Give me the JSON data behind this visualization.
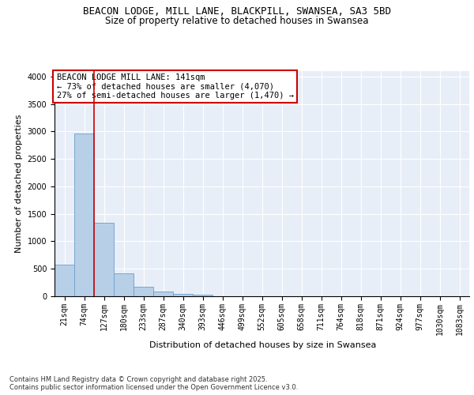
{
  "title_line1": "BEACON LODGE, MILL LANE, BLACKPILL, SWANSEA, SA3 5BD",
  "title_line2": "Size of property relative to detached houses in Swansea",
  "xlabel": "Distribution of detached houses by size in Swansea",
  "ylabel": "Number of detached properties",
  "categories": [
    "21sqm",
    "74sqm",
    "127sqm",
    "180sqm",
    "233sqm",
    "287sqm",
    "340sqm",
    "393sqm",
    "446sqm",
    "499sqm",
    "552sqm",
    "605sqm",
    "658sqm",
    "711sqm",
    "764sqm",
    "818sqm",
    "871sqm",
    "924sqm",
    "977sqm",
    "1030sqm",
    "1083sqm"
  ],
  "values": [
    580,
    2970,
    1340,
    420,
    175,
    90,
    50,
    30,
    5,
    0,
    0,
    0,
    0,
    0,
    0,
    0,
    0,
    0,
    0,
    0,
    0
  ],
  "bar_color": "#b8cfe8",
  "bar_edge_color": "#6a9fc8",
  "vline_color": "#cc0000",
  "annotation_text": "BEACON LODGE MILL LANE: 141sqm\n← 73% of detached houses are smaller (4,070)\n27% of semi-detached houses are larger (1,470) →",
  "annotation_box_color": "#cc0000",
  "annotation_bg_color": "#ffffff",
  "ylim": [
    0,
    4100
  ],
  "yticks": [
    0,
    500,
    1000,
    1500,
    2000,
    2500,
    3000,
    3500,
    4000
  ],
  "background_color": "#e8eef8",
  "grid_color": "#ffffff",
  "footer_text": "Contains HM Land Registry data © Crown copyright and database right 2025.\nContains public sector information licensed under the Open Government Licence v3.0.",
  "title_fontsize": 9,
  "subtitle_fontsize": 8.5,
  "axis_label_fontsize": 8,
  "tick_fontsize": 7,
  "annotation_fontsize": 7.5,
  "footer_fontsize": 6
}
